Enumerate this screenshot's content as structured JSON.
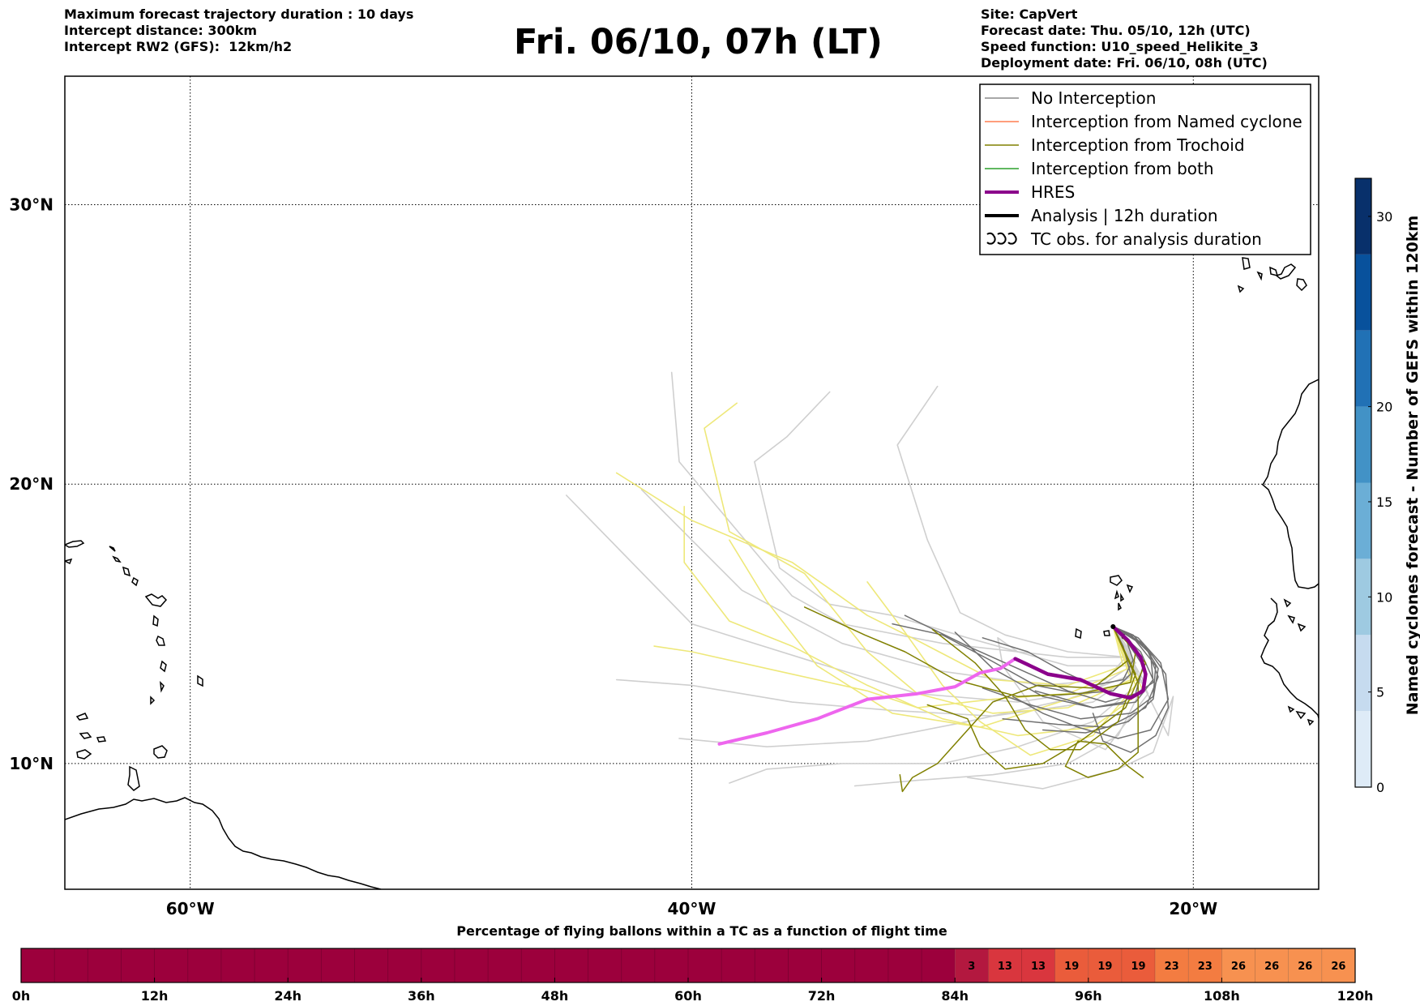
{
  "header": {
    "left": [
      "Maximum forecast trajectory duration : 10 days",
      "Intercept distance: 300km",
      "Intercept RW2 (GFS):  12km/h2"
    ],
    "title": "Fri. 06/10, 07h (LT)",
    "right": [
      "Site: CapVert",
      "Forecast date: Thu. 05/10, 12h (UTC)",
      "Speed function: U10_speed_Helikite_3",
      "Deployment date: Fri. 06/10, 08h (UTC)"
    ]
  },
  "map": {
    "lat_labels": [
      "30°N",
      "20°N",
      "10°N"
    ],
    "lon_labels": [
      "60°W",
      "40°W",
      "20°W"
    ],
    "lat_values": [
      30,
      20,
      10
    ],
    "lon_values": [
      -60,
      -40,
      -20
    ],
    "lon_range": [
      -65,
      -15
    ],
    "lat_range": [
      5.5,
      34.6
    ],
    "gridlines": "dotted"
  },
  "legend": {
    "position": "top-right",
    "items": [
      {
        "label": "No Interception",
        "color": "#8c8c8c",
        "style": "thin"
      },
      {
        "label": "Interception from Named cyclone",
        "color": "#ff7f50",
        "style": "thin"
      },
      {
        "label": "Interception from Trochoid",
        "color": "#808000",
        "style": "thin"
      },
      {
        "label": "Interception from both",
        "color": "#2ca02c",
        "style": "thin"
      },
      {
        "label": "HRES",
        "color": "#8b008b",
        "style": "thick"
      },
      {
        "label": "Analysis | 12h duration",
        "color": "#000000",
        "style": "thick"
      },
      {
        "label": "TC obs. for analysis duration",
        "color": "#000000",
        "style": "cyclone-symbols"
      }
    ]
  },
  "colorbar": {
    "label": "Named cyclones forecast - Number of GEFS within 120km",
    "ticks": [
      "0",
      "5",
      "10",
      "15",
      "20",
      "30"
    ],
    "tick_values": [
      0,
      5,
      10,
      15,
      20,
      30
    ],
    "range": [
      0,
      32
    ],
    "colors": [
      "#deebf7",
      "#c6dbef",
      "#9ecae1",
      "#6baed6",
      "#4292c6",
      "#2171b5",
      "#08519c",
      "#08306b"
    ]
  },
  "bottom_bar": {
    "title": "Percentage of flying ballons within a TC as a function of flight time",
    "tick_labels": [
      "0h",
      "12h",
      "24h",
      "36h",
      "48h",
      "60h",
      "72h",
      "84h",
      "96h",
      "108h",
      "120h"
    ],
    "hours_per_cell": 3,
    "empty_color": "#9c003c",
    "cells_from_84h": [
      {
        "value": "3",
        "color": "#b3183f"
      },
      {
        "value": "13",
        "color": "#d9363e"
      },
      {
        "value": "13",
        "color": "#d9363e"
      },
      {
        "value": "19",
        "color": "#ea5c3b"
      },
      {
        "value": "19",
        "color": "#ea5c3b"
      },
      {
        "value": "19",
        "color": "#ea5c3b"
      },
      {
        "value": "23",
        "color": "#f37c41"
      },
      {
        "value": "23",
        "color": "#f37c41"
      },
      {
        "value": "26",
        "color": "#f79150"
      },
      {
        "value": "26",
        "color": "#f79150"
      },
      {
        "value": "26",
        "color": "#f79150"
      },
      {
        "value": "26",
        "color": "#f79150"
      }
    ]
  },
  "tracks": {
    "colors": {
      "gefs_no_interception": "#cfcfcf",
      "gefs_cyclone": "#eee87a",
      "no_interception": "#707070",
      "trochoid": "#808000",
      "hres_forecast": "#ee66ee",
      "hres_analysis": "#8b008b"
    },
    "site_lonlat": [
      -23.2,
      14.9
    ],
    "hres_forecast": [
      [
        -23.2,
        14.9
      ],
      [
        -22.6,
        14.4
      ],
      [
        -22.1,
        13.8
      ],
      [
        -21.9,
        13.2
      ],
      [
        -22.0,
        12.6
      ],
      [
        -22.5,
        12.35
      ],
      [
        -23.3,
        12.5
      ],
      [
        -24.5,
        13.0
      ],
      [
        -25.8,
        13.2
      ],
      [
        -27.1,
        13.75
      ],
      [
        -27.7,
        13.4
      ],
      [
        -28.5,
        13.25
      ],
      [
        -29.5,
        12.75
      ],
      [
        -31.0,
        12.5
      ],
      [
        -33.0,
        12.3
      ],
      [
        -35.0,
        11.6
      ],
      [
        -37.0,
        11.1
      ],
      [
        -38.9,
        10.7
      ]
    ],
    "hres_analysis": [
      [
        -23.2,
        14.9
      ],
      [
        -22.6,
        14.4
      ],
      [
        -22.1,
        13.8
      ],
      [
        -21.9,
        13.2
      ],
      [
        -22.0,
        12.6
      ],
      [
        -22.5,
        12.35
      ],
      [
        -23.3,
        12.5
      ],
      [
        -24.5,
        13.0
      ],
      [
        -25.8,
        13.2
      ],
      [
        -27.1,
        13.75
      ]
    ],
    "gefs_no_interception": [
      [
        [
          -23.2,
          14.9
        ],
        [
          -22.5,
          14.0
        ],
        [
          -23.5,
          13.0
        ],
        [
          -26,
          12.8
        ],
        [
          -30,
          13.3
        ],
        [
          -34,
          14.3
        ],
        [
          -38,
          16.2
        ],
        [
          -42,
          19.8
        ]
      ],
      [
        [
          -23.2,
          14.9
        ],
        [
          -22.3,
          13.6
        ],
        [
          -24,
          12.6
        ],
        [
          -27,
          12.2
        ],
        [
          -31,
          12.5
        ],
        [
          -35,
          13.6
        ],
        [
          -40,
          15
        ],
        [
          -45,
          19.6
        ]
      ],
      [
        [
          -23.2,
          14.9
        ],
        [
          -22.2,
          13.3
        ],
        [
          -24,
          12.2
        ],
        [
          -28,
          11.7
        ],
        [
          -32,
          11.9
        ],
        [
          -36,
          12.2
        ],
        [
          -40,
          12.8
        ],
        [
          -43,
          13
        ]
      ],
      [
        [
          -23.2,
          14.9
        ],
        [
          -22.4,
          13.5
        ],
        [
          -25,
          13.5
        ],
        [
          -29,
          14.5
        ],
        [
          -32,
          15.3
        ],
        [
          -34.5,
          15.7
        ],
        [
          -36.5,
          17
        ],
        [
          -37.5,
          20.8
        ],
        [
          -36.2,
          21.7
        ],
        [
          -34.5,
          23.3
        ]
      ],
      [
        [
          -23.2,
          14.9
        ],
        [
          -22.6,
          13.8
        ],
        [
          -25,
          14
        ],
        [
          -27.5,
          14.6
        ],
        [
          -29.3,
          15.4
        ],
        [
          -30.6,
          18
        ],
        [
          -31.8,
          21.4
        ],
        [
          -30.2,
          23.5
        ]
      ],
      [
        [
          -23.2,
          14.9
        ],
        [
          -22.4,
          13.2
        ],
        [
          -25,
          12.3
        ],
        [
          -29,
          11.5
        ],
        [
          -33,
          10.8
        ],
        [
          -37,
          10.6
        ],
        [
          -40.5,
          10.9
        ]
      ],
      [
        [
          -23.2,
          14.9
        ],
        [
          -22.0,
          13.0
        ],
        [
          -24,
          11.5
        ],
        [
          -27,
          10.6
        ],
        [
          -30,
          10.0
        ],
        [
          -34,
          10.0
        ],
        [
          -37,
          9.8
        ],
        [
          -38.5,
          9.3
        ]
      ],
      [
        [
          -23.2,
          14.9
        ],
        [
          -22.0,
          12.8
        ],
        [
          -23,
          11.0
        ],
        [
          -25,
          10.0
        ],
        [
          -28,
          9.6
        ],
        [
          -31,
          9.4
        ],
        [
          -33.5,
          9.2
        ]
      ],
      [
        [
          -23.2,
          14.9
        ],
        [
          -22.0,
          12.8
        ],
        [
          -21.0,
          11.0
        ],
        [
          -20.8,
          12.4
        ],
        [
          -21.6,
          10.4
        ],
        [
          -23,
          9.8
        ],
        [
          -26,
          9.1
        ],
        [
          -29,
          9.5
        ]
      ],
      [
        [
          -23.2,
          14.9
        ],
        [
          -21.8,
          12.5
        ],
        [
          -23.5,
          10.5
        ],
        [
          -26,
          11.5
        ],
        [
          -27.6,
          13.5
        ],
        [
          -27.8,
          14.5
        ],
        [
          -27,
          14
        ]
      ],
      [
        [
          -23.2,
          14.9
        ],
        [
          -22.8,
          13.8
        ],
        [
          -25,
          13.8
        ],
        [
          -30,
          14.3
        ],
        [
          -34,
          15.0
        ],
        [
          -36,
          16.0
        ],
        [
          -40.5,
          20.8
        ],
        [
          -40.8,
          24.0
        ]
      ]
    ],
    "gefs_cyclone": [
      [
        [
          -23.2,
          14.9
        ],
        [
          -22.8,
          13.5
        ],
        [
          -25,
          12.8
        ],
        [
          -28,
          13.0
        ],
        [
          -31,
          14.4
        ],
        [
          -33,
          15.3
        ],
        [
          -36,
          17.2
        ],
        [
          -40,
          18.7
        ],
        [
          -43,
          20.4
        ]
      ],
      [
        [
          -23.2,
          14.9
        ],
        [
          -22.5,
          13.0
        ],
        [
          -25,
          12.0
        ],
        [
          -28,
          11.8
        ],
        [
          -31,
          12.5
        ],
        [
          -33,
          14.0
        ],
        [
          -35.5,
          16.8
        ],
        [
          -38.5,
          18.3
        ],
        [
          -39.5,
          22.0
        ],
        [
          -38.2,
          22.9
        ]
      ],
      [
        [
          -23.2,
          14.9
        ],
        [
          -22.0,
          12.6
        ],
        [
          -24,
          11.3
        ],
        [
          -27,
          11.0
        ],
        [
          -30,
          11.6
        ],
        [
          -33,
          12.8
        ],
        [
          -36,
          14.2
        ],
        [
          -38.5,
          15.1
        ],
        [
          -40.3,
          17.2
        ],
        [
          -40.3,
          19.2
        ]
      ],
      [
        [
          -23.2,
          14.9
        ],
        [
          -22.2,
          13.0
        ],
        [
          -25,
          12.3
        ],
        [
          -28.5,
          11.3
        ],
        [
          -32,
          11.8
        ],
        [
          -35,
          13.5
        ],
        [
          -37,
          15.8
        ],
        [
          -38.5,
          18.0
        ]
      ],
      [
        [
          -23.2,
          14.9
        ],
        [
          -22.6,
          13.4
        ],
        [
          -25,
          12.5
        ],
        [
          -28,
          12.3
        ],
        [
          -31,
          12.0
        ],
        [
          -33,
          12.6
        ],
        [
          -36.5,
          13.3
        ],
        [
          -40,
          14.0
        ],
        [
          -41.5,
          14.2
        ]
      ],
      [
        [
          -23.2,
          14.9
        ],
        [
          -22.3,
          12.8
        ],
        [
          -24,
          11.0
        ],
        [
          -26.5,
          10.3
        ],
        [
          -28.5,
          11.5
        ],
        [
          -30,
          12.8
        ],
        [
          -31.5,
          14.7
        ],
        [
          -33,
          16.5
        ]
      ]
    ],
    "no_interception": [
      [
        [
          -23.2,
          14.9
        ],
        [
          -22.6,
          14.3
        ],
        [
          -22.0,
          13.5
        ],
        [
          -22.3,
          12.5
        ],
        [
          -23.5,
          12.2
        ],
        [
          -25,
          12.6
        ],
        [
          -27,
          13.4
        ],
        [
          -29,
          14.2
        ],
        [
          -31.5,
          15.3
        ]
      ],
      [
        [
          -23.2,
          14.9
        ],
        [
          -22.1,
          14.0
        ],
        [
          -21.6,
          13.0
        ],
        [
          -22.3,
          12.2
        ],
        [
          -24,
          12.0
        ],
        [
          -26,
          12.4
        ],
        [
          -28,
          13.4
        ],
        [
          -29.5,
          14.7
        ]
      ],
      [
        [
          -23.2,
          14.9
        ],
        [
          -22.3,
          14.4
        ],
        [
          -21.5,
          13.5
        ],
        [
          -21.6,
          12.4
        ],
        [
          -22.5,
          11.8
        ],
        [
          -24.5,
          11.6
        ],
        [
          -26.5,
          12.1
        ],
        [
          -28.4,
          12.7
        ]
      ],
      [
        [
          -23.2,
          14.9
        ],
        [
          -22.5,
          14.6
        ],
        [
          -21.8,
          14.0
        ],
        [
          -21.4,
          13.1
        ],
        [
          -21.9,
          12.0
        ],
        [
          -23.4,
          11.3
        ],
        [
          -25.4,
          11.4
        ],
        [
          -27.6,
          11.6
        ]
      ],
      [
        [
          -23.2,
          14.9
        ],
        [
          -22.0,
          14.3
        ],
        [
          -21.4,
          13.4
        ],
        [
          -21.6,
          12.3
        ],
        [
          -22.6,
          11.5
        ],
        [
          -24.3,
          11.1
        ],
        [
          -26.0,
          11.2
        ]
      ],
      [
        [
          -23.2,
          14.9
        ],
        [
          -22.8,
          14.2
        ],
        [
          -22.5,
          13.2
        ],
        [
          -23.2,
          12.6
        ],
        [
          -24.6,
          12.5
        ],
        [
          -26.3,
          12.8
        ],
        [
          -28.1,
          13.7
        ],
        [
          -30,
          14.6
        ],
        [
          -32,
          15.0
        ]
      ],
      [
        [
          -23.2,
          14.9
        ],
        [
          -22.2,
          14.5
        ],
        [
          -21.3,
          13.6
        ],
        [
          -21.0,
          12.3
        ],
        [
          -21.7,
          11.2
        ],
        [
          -23.0,
          10.9
        ],
        [
          -24.6,
          11.3
        ],
        [
          -26.0,
          11.8
        ],
        [
          -27.2,
          12.4
        ]
      ],
      [
        [
          -23.2,
          14.9
        ],
        [
          -22.7,
          14.5
        ],
        [
          -22.4,
          13.7
        ],
        [
          -22.8,
          13.0
        ],
        [
          -24.0,
          12.8
        ],
        [
          -25.2,
          13.3
        ],
        [
          -26.6,
          14.0
        ],
        [
          -28.4,
          14.5
        ]
      ],
      [
        [
          -23.2,
          14.9
        ],
        [
          -21.9,
          14.2
        ],
        [
          -21.1,
          13.2
        ],
        [
          -21.0,
          12.0
        ],
        [
          -21.5,
          11.0
        ],
        [
          -22.5,
          10.4
        ],
        [
          -23.6,
          10.8
        ],
        [
          -24.0,
          11.8
        ]
      ],
      [
        [
          -23.2,
          14.9
        ],
        [
          -22.4,
          14.6
        ],
        [
          -21.7,
          13.9
        ],
        [
          -21.6,
          12.9
        ],
        [
          -22.8,
          12.2
        ],
        [
          -24.0,
          12.0
        ],
        [
          -25.1,
          12.3
        ],
        [
          -26.3,
          12.6
        ]
      ]
    ],
    "trochoid": [
      [
        [
          -23.2,
          14.9
        ],
        [
          -22.3,
          14.0
        ],
        [
          -22.5,
          12.9
        ],
        [
          -24.5,
          12.5
        ],
        [
          -27,
          12.4
        ],
        [
          -29.5,
          13.0
        ],
        [
          -31.5,
          14.0
        ],
        [
          -33.1,
          14.6
        ],
        [
          -35.5,
          15.6
        ]
      ],
      [
        [
          -23.2,
          14.9
        ],
        [
          -21.9,
          13.6
        ],
        [
          -22.7,
          12.0
        ],
        [
          -24.5,
          10.8
        ],
        [
          -26.0,
          10.0
        ],
        [
          -27.5,
          9.8
        ],
        [
          -28.5,
          10.6
        ],
        [
          -29,
          11.6
        ],
        [
          -30.6,
          12.1
        ]
      ],
      [
        [
          -23.2,
          14.9
        ],
        [
          -22.3,
          13.2
        ],
        [
          -23,
          11.5
        ],
        [
          -24.5,
          10.5
        ],
        [
          -25.7,
          10.5
        ],
        [
          -26.7,
          11.2
        ],
        [
          -27.5,
          12.4
        ],
        [
          -28.7,
          13.6
        ],
        [
          -30.4,
          14.8
        ]
      ],
      [
        [
          -23.2,
          14.9
        ],
        [
          -22.2,
          12.9
        ],
        [
          -22.2,
          10.4
        ],
        [
          -23.0,
          9.8
        ],
        [
          -24.2,
          9.5
        ],
        [
          -25.1,
          9.9
        ],
        [
          -24.6,
          10.8
        ],
        [
          -23.5,
          10.7
        ],
        [
          -22.6,
          9.9
        ],
        [
          -22.0,
          9.5
        ]
      ],
      [
        [
          -23.2,
          14.9
        ],
        [
          -22.6,
          13.7
        ],
        [
          -24.0,
          12.7
        ],
        [
          -26.2,
          12.8
        ],
        [
          -28.0,
          12.2
        ],
        [
          -29.2,
          11.0
        ],
        [
          -30.2,
          10.0
        ],
        [
          -31.2,
          9.5
        ],
        [
          -31.6,
          9.0
        ],
        [
          -31.7,
          9.6
        ]
      ]
    ]
  }
}
